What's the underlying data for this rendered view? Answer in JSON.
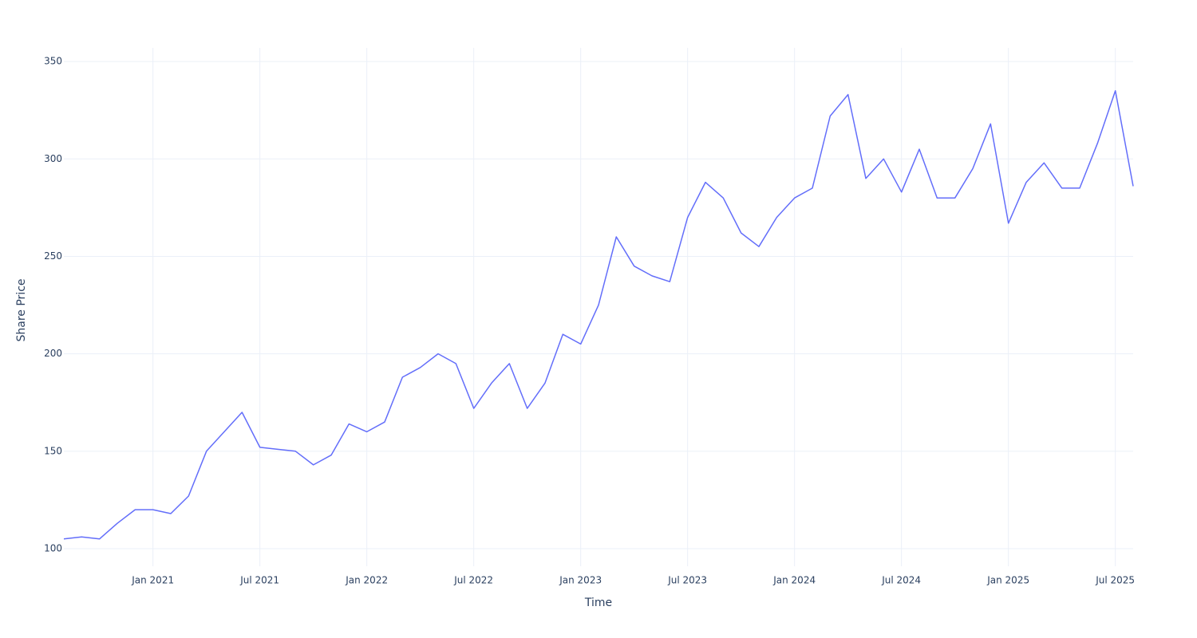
{
  "chart_data": {
    "type": "line",
    "x_label": "Time",
    "y_label": "Share Price",
    "x": [
      "2020-08",
      "2020-09",
      "2020-10",
      "2020-11",
      "2020-12",
      "2021-01",
      "2021-02",
      "2021-03",
      "2021-04",
      "2021-05",
      "2021-06",
      "2021-07",
      "2021-08",
      "2021-09",
      "2021-10",
      "2021-11",
      "2021-12",
      "2022-01",
      "2022-02",
      "2022-03",
      "2022-04",
      "2022-05",
      "2022-06",
      "2022-07",
      "2022-08",
      "2022-09",
      "2022-10",
      "2022-11",
      "2022-12",
      "2023-01",
      "2023-02",
      "2023-03",
      "2023-04",
      "2023-05",
      "2023-06",
      "2023-07",
      "2023-08",
      "2023-09",
      "2023-10",
      "2023-11",
      "2023-12",
      "2024-01",
      "2024-02",
      "2024-03",
      "2024-04",
      "2024-05",
      "2024-06",
      "2024-07",
      "2024-08",
      "2024-09",
      "2024-10",
      "2024-11",
      "2024-12",
      "2025-01",
      "2025-02",
      "2025-03",
      "2025-04",
      "2025-05",
      "2025-06",
      "2025-07",
      "2025-08"
    ],
    "values": [
      105,
      106,
      105,
      113,
      120,
      120,
      118,
      127,
      150,
      160,
      170,
      152,
      151,
      150,
      143,
      148,
      164,
      160,
      165,
      188,
      193,
      200,
      195,
      172,
      185,
      195,
      172,
      185,
      210,
      205,
      225,
      260,
      245,
      240,
      237,
      270,
      288,
      280,
      262,
      255,
      270,
      280,
      285,
      322,
      333,
      290,
      300,
      283,
      305,
      280,
      280,
      295,
      318,
      267,
      288,
      298,
      285,
      285,
      308,
      335,
      286
    ],
    "color": "#636efa",
    "xlim": [
      "2020-08",
      "2025-08"
    ],
    "xticks": [
      {
        "value": "2021-01",
        "label": "Jan 2021"
      },
      {
        "value": "2021-07",
        "label": "Jul 2021"
      },
      {
        "value": "2022-01",
        "label": "Jan 2022"
      },
      {
        "value": "2022-07",
        "label": "Jul 2022"
      },
      {
        "value": "2023-01",
        "label": "Jan 2023"
      },
      {
        "value": "2023-07",
        "label": "Jul 2023"
      },
      {
        "value": "2024-01",
        "label": "Jan 2024"
      },
      {
        "value": "2024-07",
        "label": "Jul 2024"
      },
      {
        "value": "2025-01",
        "label": "Jan 2025"
      },
      {
        "value": "2025-07",
        "label": "Jul 2025"
      }
    ],
    "ylim": [
      91,
      357
    ],
    "yticks": [
      100,
      150,
      200,
      250,
      300,
      350
    ],
    "grid": true
  }
}
